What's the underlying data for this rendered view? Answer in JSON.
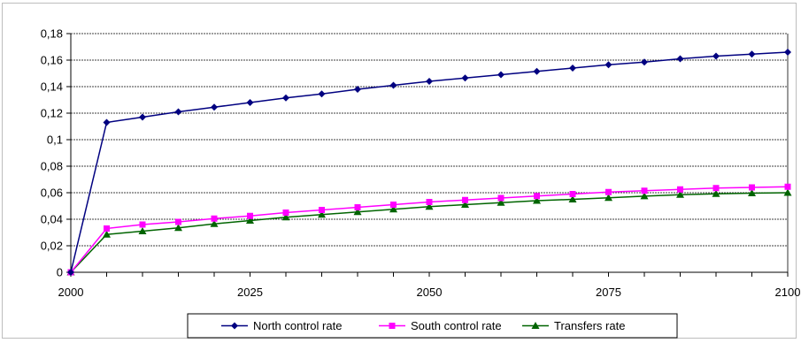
{
  "chart_data": {
    "type": "line",
    "x": [
      2000,
      2005,
      2010,
      2015,
      2020,
      2025,
      2030,
      2035,
      2040,
      2045,
      2050,
      2055,
      2060,
      2065,
      2070,
      2075,
      2080,
      2085,
      2090,
      2095,
      2100
    ],
    "xticks": [
      "2000",
      "2025",
      "2050",
      "2075",
      "2100"
    ],
    "xlim": [
      2000,
      2100
    ],
    "ylim": [
      0,
      0.18
    ],
    "yticks": [
      "0",
      "0,02",
      "0,04",
      "0,06",
      "0,08",
      "0,1",
      "0,12",
      "0,14",
      "0,16",
      "0,18"
    ],
    "grid": "horizontal dashed",
    "legend_position": "bottom",
    "series": [
      {
        "name": "North control rate",
        "color": "#000080",
        "marker": "diamond",
        "values": [
          0,
          0.113,
          0.117,
          0.121,
          0.1245,
          0.128,
          0.1315,
          0.1345,
          0.138,
          0.141,
          0.144,
          0.1465,
          0.149,
          0.1515,
          0.154,
          0.1565,
          0.1585,
          0.161,
          0.163,
          0.1645,
          0.166
        ]
      },
      {
        "name": "South control rate",
        "color": "#ff00ff",
        "marker": "square",
        "values": [
          0,
          0.033,
          0.036,
          0.038,
          0.0405,
          0.0425,
          0.045,
          0.047,
          0.049,
          0.051,
          0.053,
          0.0545,
          0.056,
          0.0575,
          0.059,
          0.0605,
          0.0615,
          0.0625,
          0.0635,
          0.064,
          0.0645
        ]
      },
      {
        "name": "Transfers rate",
        "color": "#006400",
        "marker": "triangle",
        "values": [
          0,
          0.0285,
          0.031,
          0.0335,
          0.0365,
          0.039,
          0.0415,
          0.0435,
          0.0455,
          0.0475,
          0.0495,
          0.051,
          0.0525,
          0.054,
          0.055,
          0.0562,
          0.0574,
          0.0585,
          0.0592,
          0.0597,
          0.06
        ]
      }
    ]
  }
}
